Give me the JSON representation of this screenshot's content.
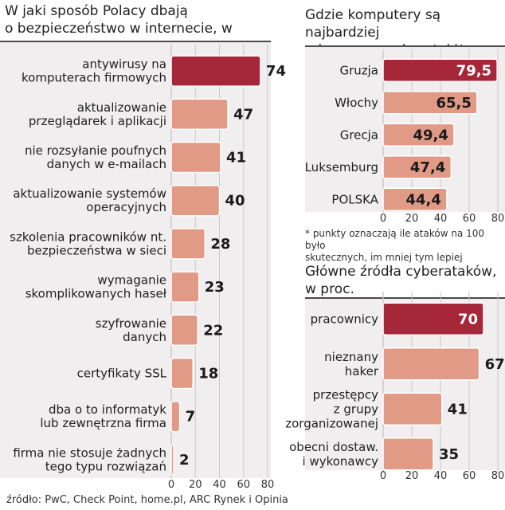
{
  "chart_data": [
    {
      "type": "bar",
      "orientation": "horizontal",
      "title": "W jaki sposób Polacy dbają o bezpieczeństwo w internecie, w proc.",
      "title_lines": [
        "W jaki sposób Polacy dbają",
        "o bezpieczeństwo w internecie, w proc."
      ],
      "categories": [
        [
          "antywirusy na",
          "komputerach firmowych"
        ],
        [
          "aktualizowanie",
          "przeglądarek i aplikacji"
        ],
        [
          "nie rozsyłanie poufnych",
          "danych w e-mailach"
        ],
        [
          "aktualizowanie systemów",
          "operacyjnych"
        ],
        [
          "szkolenia pracowników nt.",
          "bezpieczeństwa w sieci"
        ],
        [
          "wymaganie",
          "skomplikowanych haseł"
        ],
        [
          "szyfrowanie",
          "danych"
        ],
        [
          "certyfikaty SSL"
        ],
        [
          "dba o to informatyk",
          "lub zewnętrzna firma"
        ],
        [
          "firma nie stosuje żadnych",
          "tego typu rozwiązań"
        ]
      ],
      "values": [
        74,
        47,
        41,
        40,
        28,
        23,
        22,
        18,
        7,
        2
      ],
      "value_labels": [
        "74",
        "47",
        "41",
        "40",
        "28",
        "23",
        "22",
        "18",
        "7",
        "2"
      ],
      "highlight_index": 0,
      "xlim": [
        0,
        80
      ],
      "ticks": [
        "0",
        "20",
        "40",
        "60",
        "80"
      ]
    },
    {
      "type": "bar",
      "orientation": "horizontal",
      "title": "Gdzie komputery są najbardziej odporne na cyberataki*",
      "title_lines": [
        "Gdzie komputery są najbardziej",
        "odporne na cyberataki*"
      ],
      "categories": [
        [
          "Gruzja"
        ],
        [
          "Włochy"
        ],
        [
          "Grecja"
        ],
        [
          "Luksemburg"
        ],
        [
          "POLSKA"
        ]
      ],
      "values": [
        79.5,
        65.5,
        49.4,
        47.4,
        44.4
      ],
      "value_labels": [
        "79,5",
        "65,5",
        "49,4",
        "47,4",
        "44,4"
      ],
      "highlight_index": 0,
      "xlim": [
        0,
        80
      ],
      "ticks": [
        "0",
        "20",
        "40",
        "60",
        "80"
      ],
      "footnote_lines": [
        "* punkty oznaczają ile ataków na 100 było",
        "skutecznych, im mniej tym lepiej"
      ]
    },
    {
      "type": "bar",
      "orientation": "horizontal",
      "title": "Główne źródła cyberataków, w proc.",
      "title_lines": [
        "Główne źródła cyberataków,",
        "w proc."
      ],
      "categories": [
        [
          "pracownicy"
        ],
        [
          "nieznany",
          "haker"
        ],
        [
          "przestępcy",
          "z grupy",
          "zorganizowanej"
        ],
        [
          "obecni dostaw.",
          "i wykonawcy"
        ]
      ],
      "values": [
        70,
        67,
        41,
        35
      ],
      "value_labels": [
        "70",
        "67",
        "41",
        "35"
      ],
      "highlight_index": 0,
      "xlim": [
        0,
        80
      ],
      "ticks": [
        "0",
        "20",
        "40",
        "60",
        "80"
      ]
    }
  ],
  "colors": {
    "highlight": "#a6263a",
    "bar": "#e09a86",
    "grid": "#c9c9c9",
    "divider": "#4a4a4a",
    "shade": "#f0eeee"
  },
  "source": "źródło: PwC, Check Point, home.pl,  ARC Rynek i Opinia"
}
